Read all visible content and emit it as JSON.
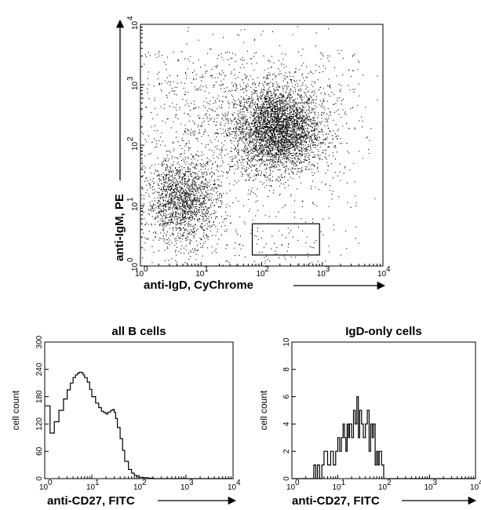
{
  "chart_data": [
    {
      "type": "scatter",
      "xlabel": "anti-IgD, CyChrome",
      "ylabel": "anti-IgM, PE",
      "xscale": "log",
      "yscale": "log",
      "xlim": [
        1,
        10000
      ],
      "ylim": [
        1,
        10000
      ],
      "x_ticks": [
        "10",
        "10",
        "10",
        "10",
        "10"
      ],
      "x_tick_exponents": [
        "0",
        "1",
        "2",
        "3",
        "4"
      ],
      "y_ticks": [
        "10",
        "10",
        "10",
        "10",
        "10"
      ],
      "y_tick_exponents": [
        "0",
        "1",
        "2",
        "3",
        "4"
      ],
      "clusters": [
        {
          "x_center": 180,
          "y_center": 180,
          "x_spread_decades": 0.35,
          "y_spread_decades": 0.35,
          "weight": 0.55
        },
        {
          "x_center": 5,
          "y_center": 12,
          "x_spread_decades": 0.3,
          "y_spread_decades": 0.35,
          "weight": 0.28
        },
        {
          "x_center": 60,
          "y_center": 300,
          "x_spread_decades": 0.9,
          "y_spread_decades": 0.6,
          "weight": 0.17
        }
      ],
      "gate": {
        "x_min": 70,
        "x_max": 900,
        "y_min": 1,
        "y_max": 5
      }
    },
    {
      "type": "line",
      "title": "all B cells",
      "xlabel": "anti-CD27, FITC",
      "ylabel": "cell count",
      "xscale": "log",
      "xlim": [
        1,
        10000
      ],
      "ylim": [
        0,
        300
      ],
      "x_ticks": [
        "10",
        "10",
        "10",
        "10",
        "10"
      ],
      "x_tick_exponents": [
        "0",
        "1",
        "2",
        "3",
        "4"
      ],
      "y_ticks": [
        0,
        60,
        120,
        180,
        240,
        300
      ],
      "x": [
        1,
        1.3,
        1.6,
        2,
        2.5,
        3,
        3.5,
        4,
        4.5,
        5,
        5.5,
        6,
        6.5,
        7,
        8,
        9,
        10,
        12,
        14,
        16,
        18,
        20,
        22,
        25,
        28,
        30,
        32,
        35,
        40,
        45,
        50,
        60,
        70,
        80,
        90,
        100,
        120,
        150,
        200,
        300,
        500,
        1000,
        3000,
        10000
      ],
      "y": [
        160,
        100,
        125,
        150,
        175,
        195,
        210,
        222,
        228,
        232,
        234,
        233,
        228,
        222,
        212,
        196,
        180,
        166,
        156,
        148,
        145,
        142,
        146,
        150,
        152,
        146,
        132,
        112,
        88,
        62,
        38,
        20,
        12,
        7,
        5,
        3,
        2,
        1,
        0,
        0,
        0,
        0,
        0,
        0
      ]
    },
    {
      "type": "line",
      "title": "IgD-only cells",
      "xlabel": "anti-CD27, FITC",
      "ylabel": "cell count",
      "xscale": "log",
      "xlim": [
        1,
        10000
      ],
      "ylim": [
        0,
        10
      ],
      "x_ticks": [
        "10",
        "10",
        "10",
        "10",
        "10"
      ],
      "x_tick_exponents": [
        "0",
        "1",
        "2",
        "3",
        "4"
      ],
      "y_ticks": [
        0,
        2,
        4,
        6,
        8,
        10
      ],
      "x": [
        1,
        2.5,
        3,
        3.3,
        3.6,
        4,
        4.5,
        5,
        6,
        7,
        8,
        9,
        10,
        11,
        12,
        13,
        14,
        15,
        16,
        17,
        18,
        20,
        22,
        24,
        26,
        28,
        30,
        33,
        36,
        40,
        44,
        48,
        52,
        56,
        60,
        65,
        70,
        75,
        80,
        90,
        100,
        120,
        10000
      ],
      "y": [
        0,
        0,
        1,
        0,
        1,
        0,
        1,
        2,
        1,
        2,
        1,
        2,
        3,
        2,
        3,
        4,
        3,
        2,
        4,
        3,
        4,
        3,
        5,
        4,
        6,
        3,
        5,
        4,
        3,
        4,
        5,
        2,
        4,
        3,
        4,
        1,
        2,
        1,
        2,
        1,
        0,
        0,
        0
      ]
    }
  ]
}
